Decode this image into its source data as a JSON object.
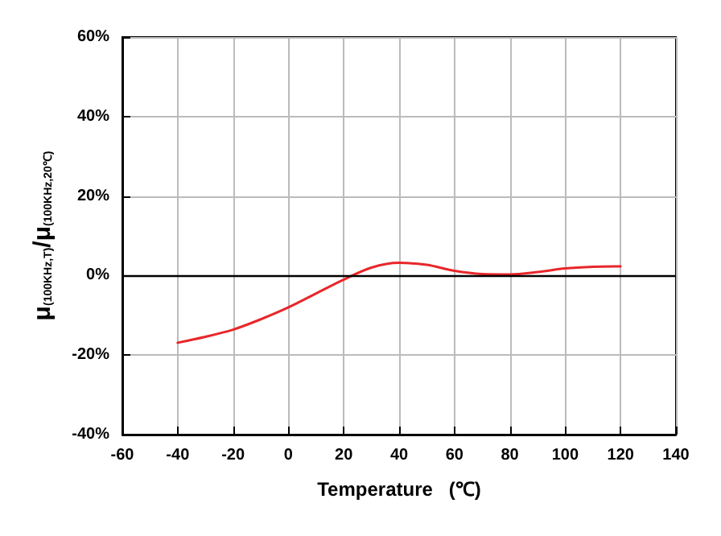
{
  "chart_data": {
    "type": "line",
    "xlabel": "Temperature   (℃)",
    "ylabel": "μ$_{(100KHz,T)}$/μ$_{(100KHz,20℃)}$",
    "x": [
      -40,
      -30,
      -20,
      -10,
      0,
      10,
      20,
      30,
      40,
      50,
      60,
      70,
      80,
      90,
      100,
      110,
      120
    ],
    "series": [
      {
        "color": "#e8262a",
        "values": [
          -16.9,
          -15.4,
          -13.6,
          -11,
          -8,
          -4.5,
          -1,
          2,
          3.2,
          2.7,
          1.2,
          0.4,
          0.3,
          0.9,
          1.8,
          2.2,
          2.3
        ]
      }
    ],
    "xlim": [
      -60,
      140
    ],
    "xticks": [
      -60,
      -40,
      -20,
      0,
      20,
      40,
      60,
      80,
      100,
      120,
      140
    ],
    "ylim": [
      -40,
      60
    ],
    "yticks": [
      {
        "value": -40,
        "label": "-40%"
      },
      {
        "value": -20,
        "label": "-20%"
      },
      {
        "value": 0,
        "label": "0%"
      },
      {
        "value": 20,
        "label": "20%"
      },
      {
        "value": 40,
        "label": "40%"
      },
      {
        "value": 60,
        "label": "60%"
      }
    ],
    "ref_lines": [
      {
        "axis": "y",
        "value": 0,
        "color": "#000000"
      }
    ],
    "grid": true,
    "marker": "none",
    "line_style": "solid"
  }
}
